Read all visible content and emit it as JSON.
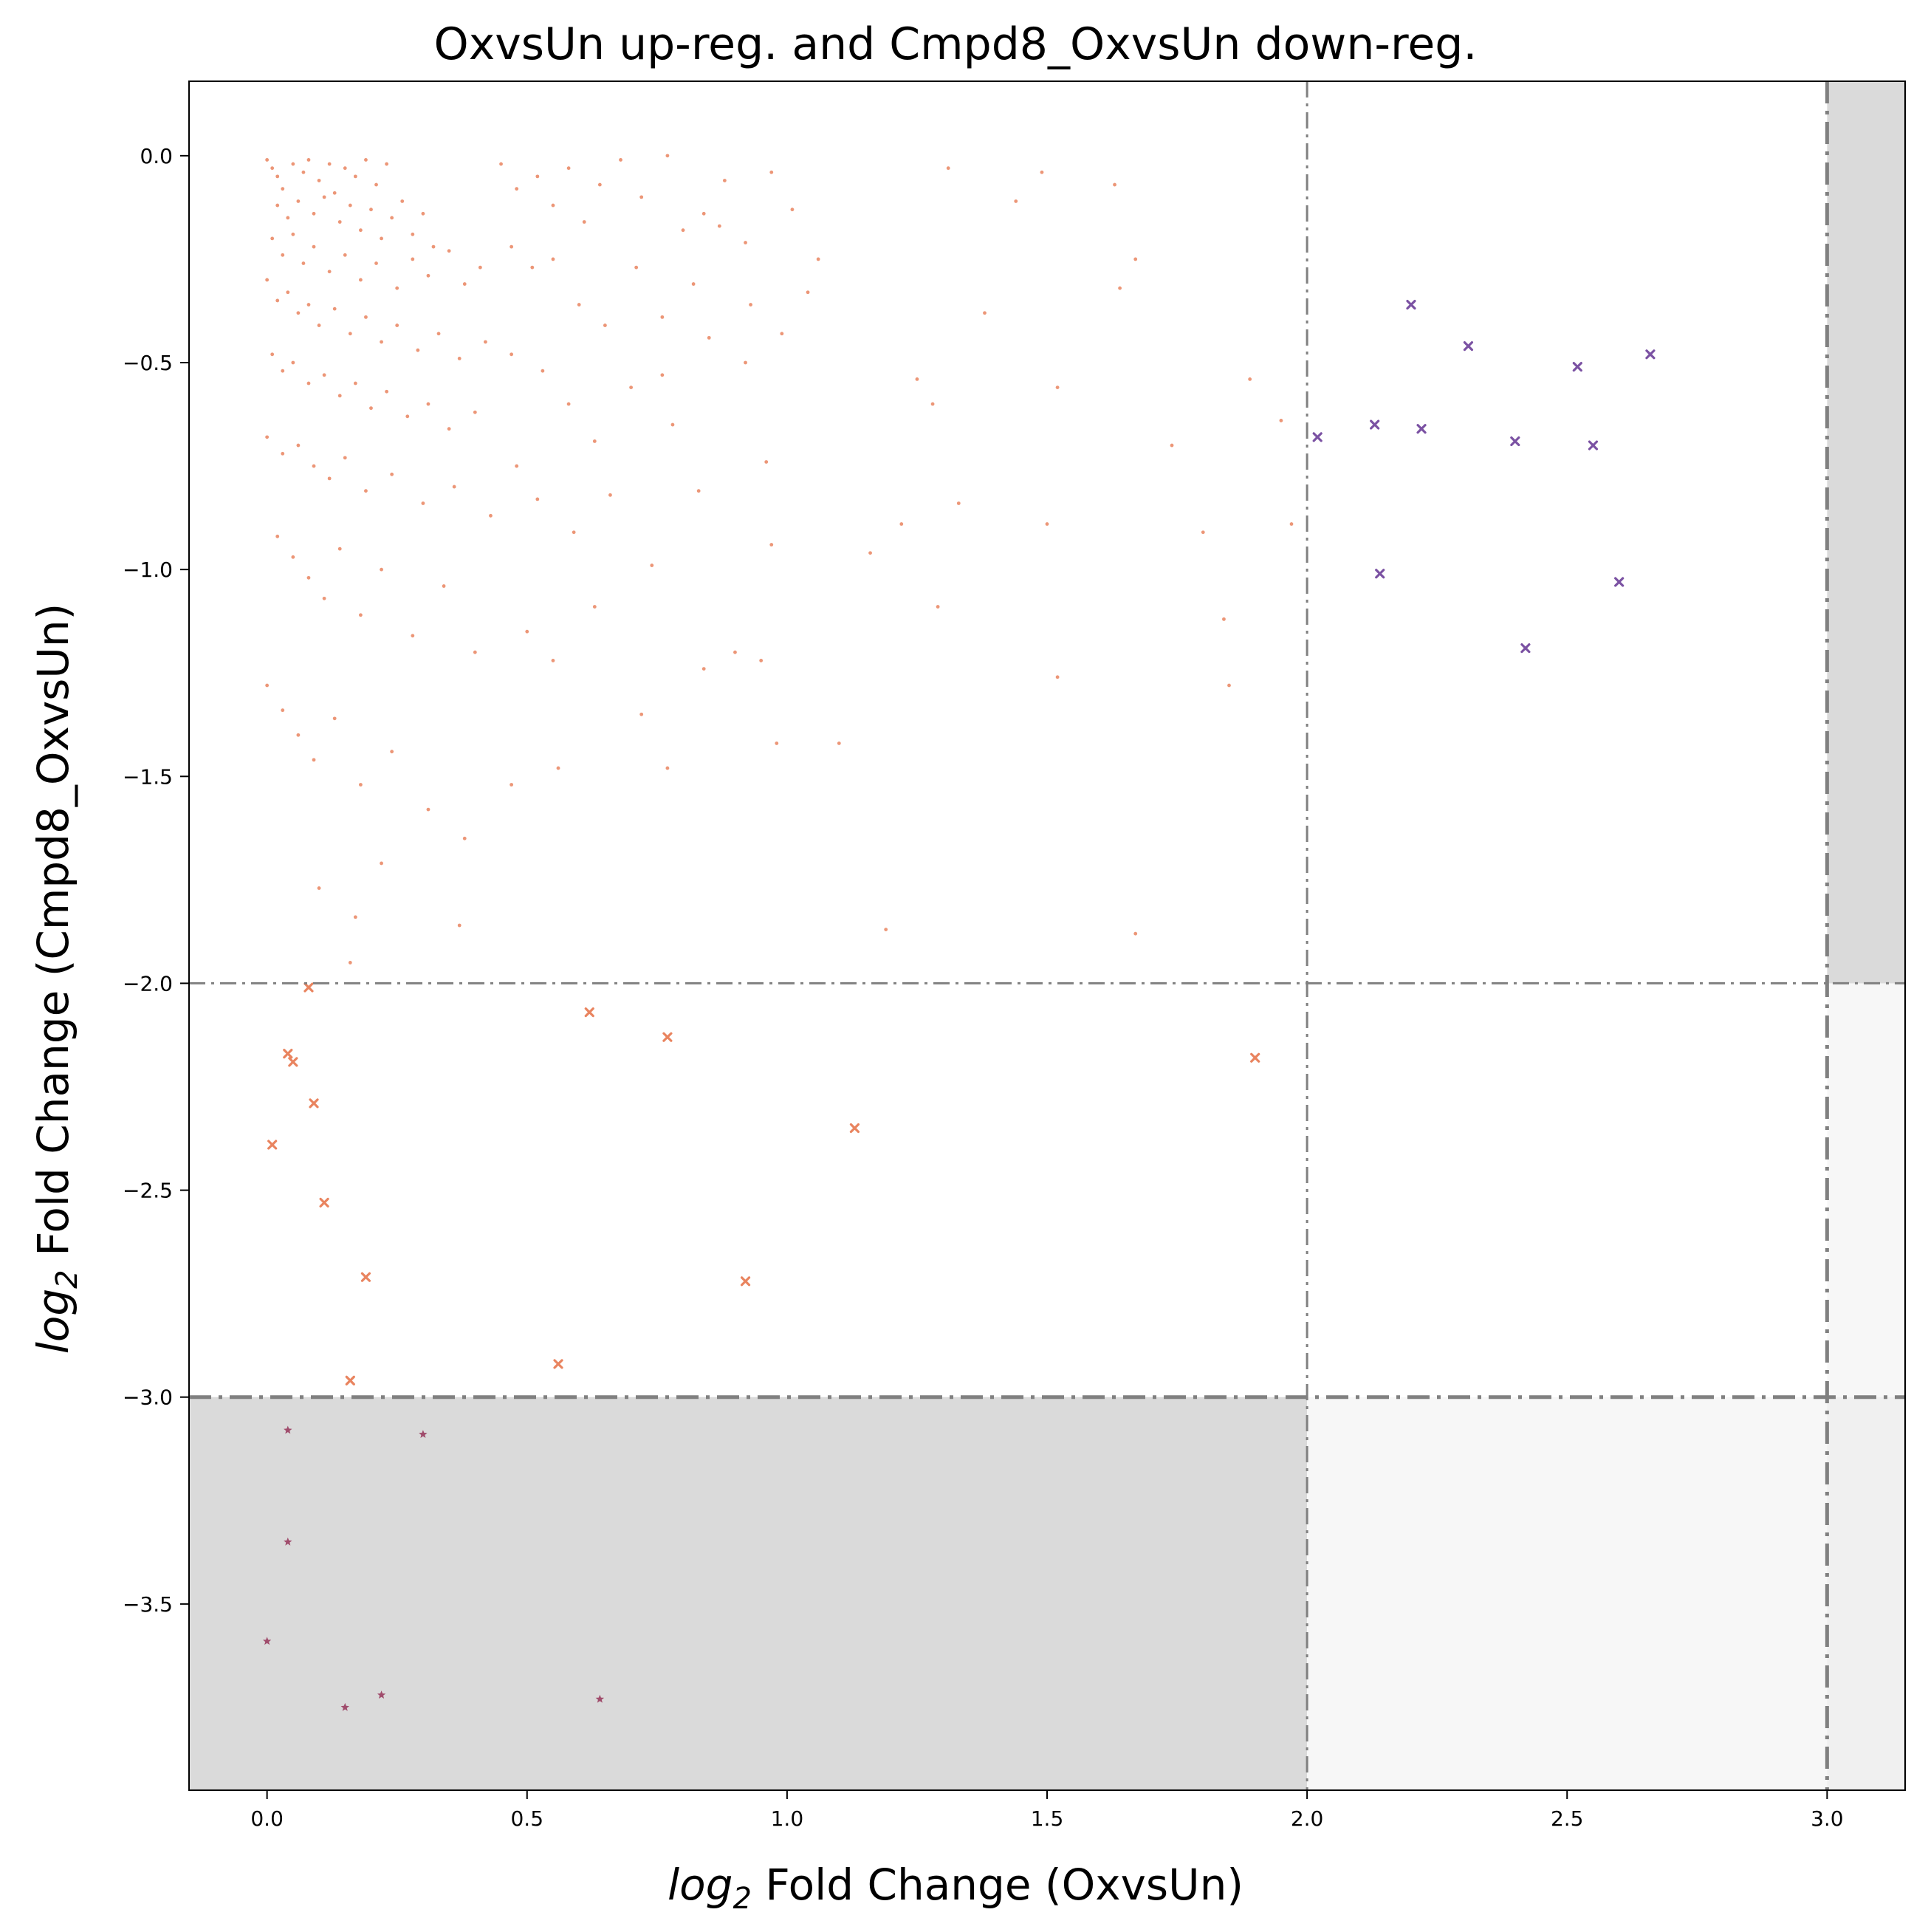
{
  "chart_data": {
    "type": "scatter",
    "title": "OxvsUn up-reg. and Cmpd8_OxvsUn down-reg.",
    "xlabel": {
      "base": "log",
      "sub": "2",
      "rest": " Fold Change (OxvsUn)"
    },
    "ylabel": {
      "base": "log",
      "sub": "2",
      "rest": " Fold Change (Cmpd8_OxvsUn)"
    },
    "xlim": [
      -0.15,
      3.15
    ],
    "ylim": [
      -3.95,
      0.18
    ],
    "xticks": [
      0.0,
      0.5,
      1.0,
      1.5,
      2.0,
      2.5,
      3.0
    ],
    "xtick_labels": [
      "0.0",
      "0.5",
      "1.0",
      "1.5",
      "2.0",
      "2.5",
      "3.0"
    ],
    "yticks": [
      0.0,
      -0.5,
      -1.0,
      -1.5,
      -2.0,
      -2.5,
      -3.0,
      -3.5
    ],
    "ytick_labels": [
      "0.0",
      "−0.5",
      "−1.0",
      "−1.5",
      "−2.0",
      "−2.5",
      "−3.0",
      "−3.5"
    ],
    "grid": false,
    "thresholds": {
      "x": [
        {
          "value": 2.0,
          "style": "thin"
        },
        {
          "value": 3.0,
          "style": "thick"
        }
      ],
      "y": [
        {
          "value": -2.0,
          "style": "thin"
        },
        {
          "value": -3.0,
          "style": "thick"
        }
      ]
    },
    "shaded_regions": [
      {
        "x": [
          -0.15,
          2.0
        ],
        "y": [
          -3.95,
          -3.0
        ],
        "color": "#dadada"
      },
      {
        "x": [
          2.0,
          3.15
        ],
        "y": [
          -3.95,
          -3.0
        ],
        "color": "#f7f7f7"
      },
      {
        "x": [
          3.0,
          3.15
        ],
        "y": [
          -3.0,
          -2.0
        ],
        "color": "#f7f7f7"
      },
      {
        "x": [
          3.0,
          3.15
        ],
        "y": [
          -2.0,
          0.18
        ],
        "color": "#dadada"
      },
      {
        "x": [
          3.0,
          3.15
        ],
        "y": [
          -3.95,
          -3.0
        ],
        "color": "#f0f0f0"
      }
    ],
    "line_color": "#808080",
    "series": [
      {
        "marker": "dot",
        "color": "#e9845f",
        "points": [
          [
            0.0,
            -0.01
          ],
          [
            0.01,
            -0.03
          ],
          [
            0.02,
            -0.05
          ],
          [
            0.03,
            -0.08
          ],
          [
            0.05,
            -0.02
          ],
          [
            0.07,
            -0.04
          ],
          [
            0.08,
            -0.01
          ],
          [
            0.1,
            -0.06
          ],
          [
            0.12,
            -0.02
          ],
          [
            0.13,
            -0.09
          ],
          [
            0.15,
            -0.03
          ],
          [
            0.17,
            -0.05
          ],
          [
            0.19,
            -0.01
          ],
          [
            0.21,
            -0.07
          ],
          [
            0.23,
            -0.02
          ],
          [
            0.02,
            -0.12
          ],
          [
            0.04,
            -0.15
          ],
          [
            0.06,
            -0.11
          ],
          [
            0.09,
            -0.14
          ],
          [
            0.11,
            -0.1
          ],
          [
            0.14,
            -0.16
          ],
          [
            0.16,
            -0.12
          ],
          [
            0.18,
            -0.18
          ],
          [
            0.2,
            -0.13
          ],
          [
            0.22,
            -0.2
          ],
          [
            0.24,
            -0.15
          ],
          [
            0.26,
            -0.11
          ],
          [
            0.28,
            -0.19
          ],
          [
            0.3,
            -0.14
          ],
          [
            0.32,
            -0.22
          ],
          [
            0.01,
            -0.2
          ],
          [
            0.03,
            -0.24
          ],
          [
            0.05,
            -0.19
          ],
          [
            0.07,
            -0.26
          ],
          [
            0.09,
            -0.22
          ],
          [
            0.12,
            -0.28
          ],
          [
            0.15,
            -0.24
          ],
          [
            0.18,
            -0.3
          ],
          [
            0.21,
            -0.26
          ],
          [
            0.25,
            -0.32
          ],
          [
            0.28,
            -0.25
          ],
          [
            0.31,
            -0.29
          ],
          [
            0.35,
            -0.23
          ],
          [
            0.38,
            -0.31
          ],
          [
            0.41,
            -0.27
          ],
          [
            0.0,
            -0.3
          ],
          [
            0.02,
            -0.35
          ],
          [
            0.04,
            -0.33
          ],
          [
            0.06,
            -0.38
          ],
          [
            0.08,
            -0.36
          ],
          [
            0.1,
            -0.41
          ],
          [
            0.13,
            -0.37
          ],
          [
            0.16,
            -0.43
          ],
          [
            0.19,
            -0.39
          ],
          [
            0.22,
            -0.45
          ],
          [
            0.25,
            -0.41
          ],
          [
            0.29,
            -0.47
          ],
          [
            0.33,
            -0.43
          ],
          [
            0.37,
            -0.49
          ],
          [
            0.42,
            -0.45
          ],
          [
            0.01,
            -0.48
          ],
          [
            0.03,
            -0.52
          ],
          [
            0.05,
            -0.5
          ],
          [
            0.08,
            -0.55
          ],
          [
            0.11,
            -0.53
          ],
          [
            0.14,
            -0.58
          ],
          [
            0.17,
            -0.55
          ],
          [
            0.2,
            -0.61
          ],
          [
            0.23,
            -0.57
          ],
          [
            0.27,
            -0.63
          ],
          [
            0.31,
            -0.6
          ],
          [
            0.35,
            -0.66
          ],
          [
            0.4,
            -0.62
          ],
          [
            0.0,
            -0.68
          ],
          [
            0.03,
            -0.72
          ],
          [
            0.06,
            -0.7
          ],
          [
            0.09,
            -0.75
          ],
          [
            0.12,
            -0.78
          ],
          [
            0.15,
            -0.73
          ],
          [
            0.19,
            -0.81
          ],
          [
            0.24,
            -0.77
          ],
          [
            0.3,
            -0.84
          ],
          [
            0.36,
            -0.8
          ],
          [
            0.43,
            -0.87
          ],
          [
            0.02,
            -0.92
          ],
          [
            0.05,
            -0.97
          ],
          [
            0.08,
            -1.02
          ],
          [
            0.11,
            -1.07
          ],
          [
            0.14,
            -0.95
          ],
          [
            0.18,
            -1.11
          ],
          [
            0.22,
            -1.0
          ],
          [
            0.28,
            -1.16
          ],
          [
            0.34,
            -1.04
          ],
          [
            0.4,
            -1.2
          ],
          [
            0.0,
            -1.28
          ],
          [
            0.03,
            -1.34
          ],
          [
            0.06,
            -1.4
          ],
          [
            0.09,
            -1.46
          ],
          [
            0.13,
            -1.36
          ],
          [
            0.18,
            -1.52
          ],
          [
            0.24,
            -1.44
          ],
          [
            0.31,
            -1.58
          ],
          [
            0.38,
            -1.65
          ],
          [
            0.1,
            -1.77
          ],
          [
            0.17,
            -1.84
          ],
          [
            0.22,
            -1.71
          ],
          [
            0.16,
            -1.95
          ],
          [
            0.37,
            -1.86
          ],
          [
            0.45,
            -0.02
          ],
          [
            0.48,
            -0.08
          ],
          [
            0.52,
            -0.05
          ],
          [
            0.55,
            -0.12
          ],
          [
            0.58,
            -0.03
          ],
          [
            0.61,
            -0.16
          ],
          [
            0.64,
            -0.07
          ],
          [
            0.68,
            -0.01
          ],
          [
            0.72,
            -0.1
          ],
          [
            0.77,
            -0.0
          ],
          [
            0.8,
            -0.18
          ],
          [
            0.84,
            -0.14
          ],
          [
            0.88,
            -0.06
          ],
          [
            0.92,
            -0.21
          ],
          [
            0.97,
            -0.04
          ],
          [
            1.01,
            -0.13
          ],
          [
            0.47,
            -0.22
          ],
          [
            0.51,
            -0.27
          ],
          [
            0.55,
            -0.25
          ],
          [
            0.6,
            -0.36
          ],
          [
            0.65,
            -0.41
          ],
          [
            0.71,
            -0.27
          ],
          [
            0.76,
            -0.39
          ],
          [
            0.82,
            -0.31
          ],
          [
            0.87,
            -0.17
          ],
          [
            0.93,
            -0.36
          ],
          [
            0.99,
            -0.43
          ],
          [
            1.06,
            -0.25
          ],
          [
            1.04,
            -0.33
          ],
          [
            0.47,
            -0.48
          ],
          [
            0.53,
            -0.52
          ],
          [
            0.58,
            -0.6
          ],
          [
            0.63,
            -0.69
          ],
          [
            0.7,
            -0.56
          ],
          [
            0.76,
            -0.53
          ],
          [
            0.78,
            -0.65
          ],
          [
            0.85,
            -0.44
          ],
          [
            0.92,
            -0.5
          ],
          [
            0.96,
            -0.74
          ],
          [
            0.48,
            -0.75
          ],
          [
            0.52,
            -0.83
          ],
          [
            0.59,
            -0.91
          ],
          [
            0.66,
            -0.82
          ],
          [
            0.74,
            -0.99
          ],
          [
            0.83,
            -0.81
          ],
          [
            0.97,
            -0.94
          ],
          [
            0.5,
            -1.15
          ],
          [
            0.55,
            -1.22
          ],
          [
            0.63,
            -1.09
          ],
          [
            0.72,
            -1.35
          ],
          [
            0.84,
            -1.24
          ],
          [
            0.9,
            -1.2
          ],
          [
            0.95,
            -1.22
          ],
          [
            0.98,
            -1.42
          ],
          [
            1.1,
            -1.42
          ],
          [
            0.56,
            -1.48
          ],
          [
            0.77,
            -1.48
          ],
          [
            0.47,
            -1.52
          ],
          [
            1.16,
            -0.96
          ],
          [
            1.19,
            -1.87
          ],
          [
            1.22,
            -0.89
          ],
          [
            1.25,
            -0.54
          ],
          [
            1.28,
            -0.6
          ],
          [
            1.29,
            -1.09
          ],
          [
            1.31,
            -0.03
          ],
          [
            1.33,
            -0.84
          ],
          [
            1.38,
            -0.38
          ],
          [
            1.44,
            -0.11
          ],
          [
            1.49,
            -0.04
          ],
          [
            1.5,
            -0.89
          ],
          [
            1.52,
            -0.56
          ],
          [
            1.52,
            -1.26
          ],
          [
            1.63,
            -0.07
          ],
          [
            1.64,
            -0.32
          ],
          [
            1.67,
            -0.25
          ],
          [
            1.67,
            -1.88
          ],
          [
            1.74,
            -0.7
          ],
          [
            1.8,
            -0.91
          ],
          [
            1.84,
            -1.12
          ],
          [
            1.85,
            -1.28
          ],
          [
            1.89,
            -0.54
          ],
          [
            1.95,
            -0.64
          ],
          [
            1.97,
            -0.89
          ]
        ]
      },
      {
        "marker": "x",
        "color": "#e9845f",
        "points": [
          [
            0.08,
            -2.01
          ],
          [
            0.04,
            -2.17
          ],
          [
            0.05,
            -2.19
          ],
          [
            0.09,
            -2.29
          ],
          [
            0.01,
            -2.39
          ],
          [
            0.11,
            -2.53
          ],
          [
            0.19,
            -2.71
          ],
          [
            0.16,
            -2.96
          ],
          [
            0.62,
            -2.07
          ],
          [
            0.77,
            -2.13
          ],
          [
            1.13,
            -2.35
          ],
          [
            0.92,
            -2.72
          ],
          [
            0.56,
            -2.92
          ],
          [
            1.9,
            -2.18
          ]
        ]
      },
      {
        "marker": "x",
        "color": "#7b52a3",
        "points": [
          [
            2.02,
            -0.68
          ],
          [
            2.13,
            -0.65
          ],
          [
            2.14,
            -1.01
          ],
          [
            2.2,
            -0.36
          ],
          [
            2.22,
            -0.66
          ],
          [
            2.31,
            -0.46
          ],
          [
            2.4,
            -0.69
          ],
          [
            2.42,
            -1.19
          ],
          [
            2.52,
            -0.51
          ],
          [
            2.55,
            -0.7
          ],
          [
            2.6,
            -1.03
          ],
          [
            2.66,
            -0.48
          ]
        ]
      },
      {
        "marker": "star",
        "color": "#a04c6c",
        "points": [
          [
            0.04,
            -3.08
          ],
          [
            0.3,
            -3.09
          ],
          [
            0.04,
            -3.35
          ],
          [
            0.0,
            -3.59
          ],
          [
            0.15,
            -3.75
          ],
          [
            0.22,
            -3.72
          ],
          [
            0.64,
            -3.73
          ]
        ]
      }
    ]
  }
}
